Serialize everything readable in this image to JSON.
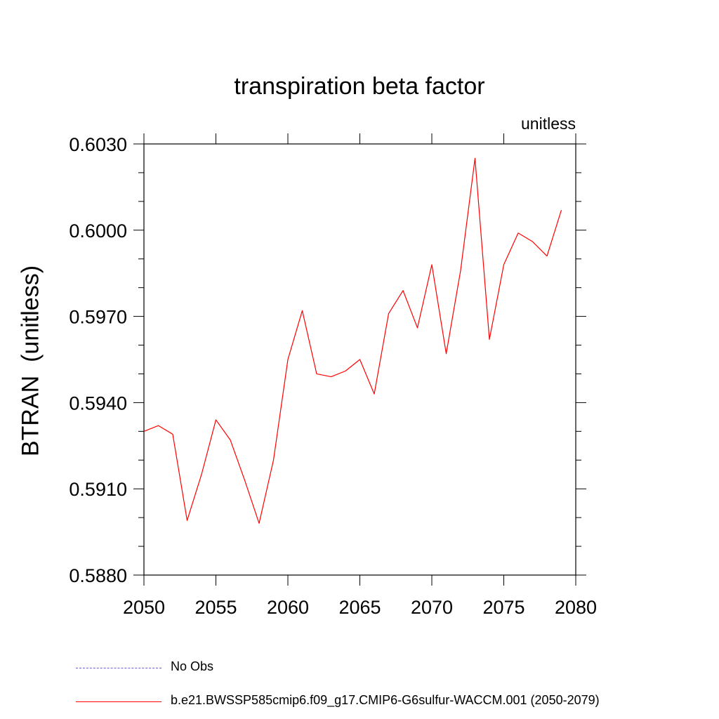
{
  "chart_data": {
    "type": "line",
    "title": "transpiration beta factor",
    "units_label": "unitless",
    "ylabel": "BTRAN  (unitless)",
    "xlabel": "",
    "xlim": [
      2050,
      2080
    ],
    "ylim": [
      0.588,
      0.603
    ],
    "x_ticks": [
      "2050",
      "2055",
      "2060",
      "2065",
      "2070",
      "2075",
      "2080"
    ],
    "y_ticks": [
      "0.5880",
      "0.5910",
      "0.5940",
      "0.5970",
      "0.6000",
      "0.6030"
    ],
    "series": [
      {
        "name": "b.e21.BWSSP585cmip6.f09_g17.CMIP6-G6sulfur-WACCM.001 (2050-2079)",
        "color": "#ff0000",
        "x": [
          2050,
          2051,
          2052,
          2053,
          2054,
          2055,
          2056,
          2057,
          2058,
          2059,
          2060,
          2061,
          2062,
          2063,
          2064,
          2065,
          2066,
          2067,
          2068,
          2069,
          2070,
          2071,
          2072,
          2073,
          2074,
          2075,
          2076,
          2077,
          2078,
          2079
        ],
        "y": [
          0.593,
          0.5932,
          0.5929,
          0.5899,
          0.5915,
          0.5934,
          0.5927,
          0.5913,
          0.5898,
          0.592,
          0.5955,
          0.5972,
          0.595,
          0.5949,
          0.5951,
          0.5955,
          0.5943,
          0.5971,
          0.5979,
          0.5966,
          0.5988,
          0.5957,
          0.5986,
          0.6025,
          0.5962,
          0.5988,
          0.5999,
          0.5996,
          0.5991,
          0.6007
        ]
      }
    ],
    "legend": [
      {
        "label": "No Obs",
        "style": "dashed",
        "color": "#6a5acd"
      },
      {
        "label": "b.e21.BWSSP585cmip6.f09_g17.CMIP6-G6sulfur-WACCM.001 (2050-2079)",
        "style": "solid",
        "color": "#ff0000"
      }
    ],
    "legend_position": "bottom"
  }
}
